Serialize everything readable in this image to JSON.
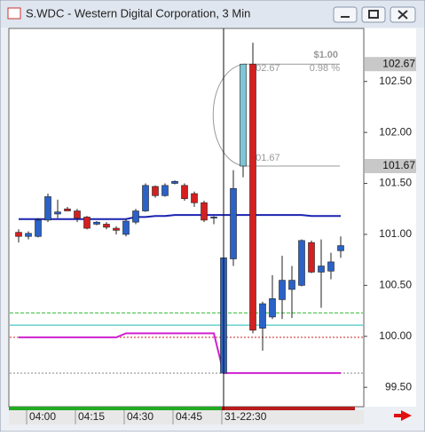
{
  "window": {
    "title": "S.WDC - Western Digital Corporation, 3 Min"
  },
  "chart_data": {
    "type": "candlestick",
    "categories": [
      null,
      "04:00",
      null,
      null,
      null,
      null,
      "04:15",
      null,
      null,
      null,
      null,
      "04:30",
      null,
      null,
      null,
      null,
      "04:45",
      null,
      null,
      null,
      null,
      "31-22:30",
      null,
      null,
      null,
      null,
      null,
      null,
      null,
      null,
      null,
      null,
      null,
      null
    ],
    "open": [
      101.02,
      100.98,
      100.98,
      101.14,
      101.2,
      101.25,
      101.23,
      101.17,
      101.1,
      101.1,
      101.06,
      101.0,
      101.12,
      101.23,
      101.47,
      101.38,
      101.5,
      101.48,
      101.4,
      101.31,
      101.16,
      99.64,
      100.76,
      101.67,
      102.67,
      100.08,
      100.19,
      100.36,
      100.46,
      100.5,
      100.92,
      100.63,
      100.64,
      100.84
    ],
    "high": [
      101.05,
      101.03,
      101.16,
      101.4,
      101.34,
      101.27,
      101.25,
      101.18,
      101.13,
      101.12,
      101.08,
      101.15,
      101.25,
      101.5,
      101.48,
      101.5,
      101.53,
      101.5,
      101.42,
      101.33,
      101.18,
      100.83,
      101.63,
      102.67,
      102.88,
      100.34,
      100.6,
      100.79,
      100.69,
      100.95,
      100.94,
      100.95,
      100.82,
      100.98
    ],
    "low": [
      100.92,
      100.95,
      100.97,
      101.12,
      101.16,
      101.23,
      101.12,
      101.05,
      101.09,
      101.05,
      101.0,
      100.98,
      101.1,
      101.22,
      101.36,
      101.37,
      101.49,
      101.33,
      101.27,
      101.12,
      101.1,
      99.62,
      100.69,
      101.56,
      100.03,
      99.86,
      100.17,
      100.17,
      100.18,
      100.49,
      100.62,
      100.28,
      100.56,
      100.77
    ],
    "close": [
      100.98,
      101.01,
      101.14,
      101.37,
      101.22,
      101.23,
      101.16,
      101.06,
      101.12,
      101.07,
      101.04,
      101.13,
      101.23,
      101.48,
      101.38,
      101.48,
      101.52,
      101.35,
      101.31,
      101.14,
      101.17,
      100.77,
      101.45,
      102.67,
      100.06,
      100.32,
      100.37,
      100.55,
      100.55,
      100.94,
      100.63,
      100.69,
      100.73,
      100.89
    ],
    "up_color": "#2a62c8",
    "down_color": "#d42020",
    "highlight": {
      "index": 23,
      "color": "#7cc6d6"
    },
    "lines": [
      {
        "color": "#1a22b0",
        "values": [
          101.15,
          101.15,
          101.15,
          101.15,
          101.15,
          101.15,
          101.15,
          101.15,
          101.15,
          101.15,
          101.15,
          101.15,
          101.17,
          101.17,
          101.18,
          101.18,
          101.19,
          101.19,
          101.19,
          101.19,
          101.19,
          101.19,
          101.19,
          101.19,
          101.19,
          101.19,
          101.19,
          101.19,
          101.19,
          101.19,
          101.18,
          101.18,
          101.18,
          101.18
        ]
      },
      {
        "color": "#d020d0",
        "values": [
          99.99,
          99.99,
          99.99,
          99.99,
          99.99,
          99.99,
          99.99,
          99.99,
          99.99,
          99.99,
          99.99,
          100.03,
          100.03,
          100.03,
          100.03,
          100.03,
          100.03,
          100.03,
          100.03,
          100.03,
          100.03,
          99.64,
          99.64,
          99.64,
          99.64,
          99.64,
          99.64,
          99.64,
          99.64,
          99.64,
          99.64,
          99.64,
          99.64,
          99.64
        ]
      }
    ],
    "levels": [
      {
        "value": 100.23,
        "color": "#33bb33",
        "style": "dashed"
      },
      {
        "value": 100.11,
        "color": "#20b8b8",
        "style": "solid"
      },
      {
        "value": 99.99,
        "color": "#cc2222",
        "style": "dotted"
      },
      {
        "value": 99.64,
        "color": "#888888",
        "style": "dotted"
      }
    ],
    "ylim": [
      99.31,
      103.02
    ],
    "yticks": [
      {
        "value": 99.5,
        "label": "99.50"
      },
      {
        "value": 100,
        "label": "100.00"
      },
      {
        "value": 100.5,
        "label": "100.50"
      },
      {
        "value": 101,
        "label": "101.00"
      },
      {
        "value": 101.5,
        "label": "101.50"
      },
      {
        "value": 102,
        "label": "102.00"
      },
      {
        "value": 102.5,
        "label": "102.50"
      }
    ],
    "price_markers": [
      102.67,
      101.67
    ],
    "measure": {
      "change": "$1.00",
      "percent": "0.98 %",
      "high": 102.67,
      "low": 101.67
    }
  }
}
